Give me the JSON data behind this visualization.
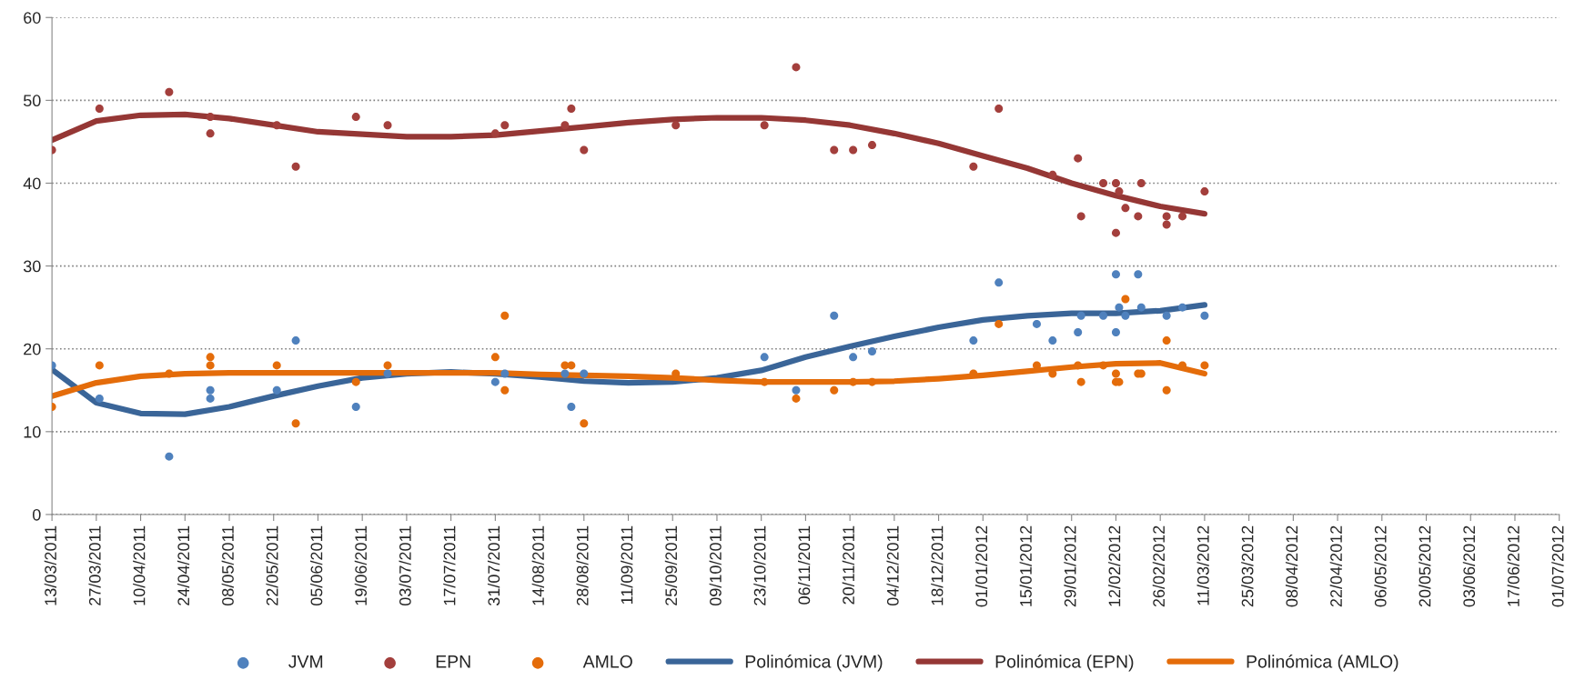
{
  "chart_data": {
    "type": "scatter",
    "xlim": [
      "2011-03-13",
      "2012-07-01"
    ],
    "xticks": [
      {
        "value": "2011-03-13",
        "label": "13/03/2011"
      },
      {
        "value": "2011-03-27",
        "label": "27/03/2011"
      },
      {
        "value": "2011-04-10",
        "label": "10/04/2011"
      },
      {
        "value": "2011-04-24",
        "label": "24/04/2011"
      },
      {
        "value": "2011-05-08",
        "label": "08/05/2011"
      },
      {
        "value": "2011-05-22",
        "label": "22/05/2011"
      },
      {
        "value": "2011-06-05",
        "label": "05/06/2011"
      },
      {
        "value": "2011-06-19",
        "label": "19/06/2011"
      },
      {
        "value": "2011-07-03",
        "label": "03/07/2011"
      },
      {
        "value": "2011-07-17",
        "label": "17/07/2011"
      },
      {
        "value": "2011-07-31",
        "label": "31/07/2011"
      },
      {
        "value": "2011-08-14",
        "label": "14/08/2011"
      },
      {
        "value": "2011-08-28",
        "label": "28/08/2011"
      },
      {
        "value": "2011-09-11",
        "label": "11/09/2011"
      },
      {
        "value": "2011-09-25",
        "label": "25/09/2011"
      },
      {
        "value": "2011-10-09",
        "label": "09/10/2011"
      },
      {
        "value": "2011-10-23",
        "label": "23/10/2011"
      },
      {
        "value": "2011-11-06",
        "label": "06/11/2011"
      },
      {
        "value": "2011-11-20",
        "label": "20/11/2011"
      },
      {
        "value": "2011-12-04",
        "label": "04/12/2011"
      },
      {
        "value": "2011-12-18",
        "label": "18/12/2011"
      },
      {
        "value": "2012-01-01",
        "label": "01/01/2012"
      },
      {
        "value": "2012-01-15",
        "label": "15/01/2012"
      },
      {
        "value": "2012-01-29",
        "label": "29/01/2012"
      },
      {
        "value": "2012-02-12",
        "label": "12/02/2012"
      },
      {
        "value": "2012-02-26",
        "label": "26/02/2012"
      },
      {
        "value": "2012-03-11",
        "label": "11/03/2012"
      },
      {
        "value": "2012-03-25",
        "label": "25/03/2012"
      },
      {
        "value": "2012-04-08",
        "label": "08/04/2012"
      },
      {
        "value": "2012-04-22",
        "label": "22/04/2012"
      },
      {
        "value": "2012-05-06",
        "label": "06/05/2012"
      },
      {
        "value": "2012-05-20",
        "label": "20/05/2012"
      },
      {
        "value": "2012-06-03",
        "label": "03/06/2012"
      },
      {
        "value": "2012-06-17",
        "label": "17/06/2012"
      },
      {
        "value": "2012-07-01",
        "label": "01/07/2012"
      }
    ],
    "ylim": [
      0,
      60
    ],
    "yticks": [
      0,
      10,
      20,
      30,
      40,
      50,
      60
    ],
    "grid": "y",
    "legend": "bottom",
    "series": [
      {
        "name": "JVM",
        "marker": "circle",
        "color": "#4f81bd",
        "x": [
          "2011-03-13",
          "2011-03-28",
          "2011-04-19",
          "2011-05-02",
          "2011-05-02",
          "2011-05-23",
          "2011-05-29",
          "2011-06-17",
          "2011-06-27",
          "2011-07-31",
          "2011-08-03",
          "2011-08-22",
          "2011-08-24",
          "2011-08-28",
          "2011-10-24",
          "2011-11-03",
          "2011-11-15",
          "2011-11-21",
          "2011-11-27",
          "2011-12-29",
          "2012-01-06",
          "2012-01-18",
          "2012-01-23",
          "2012-01-31",
          "2012-02-01",
          "2012-02-08",
          "2012-02-12",
          "2012-02-12",
          "2012-02-13",
          "2012-02-15",
          "2012-02-19",
          "2012-02-20",
          "2012-02-28",
          "2012-03-04",
          "2012-03-11"
        ],
        "values": [
          18,
          14,
          7,
          15,
          14,
          15,
          21,
          13,
          17,
          16,
          17,
          17,
          13,
          17,
          19,
          15,
          24,
          19,
          19.7,
          21,
          28,
          23,
          21,
          22,
          24,
          24,
          29,
          22,
          25,
          24,
          29,
          25,
          24,
          25,
          24
        ]
      },
      {
        "name": "EPN",
        "marker": "circle",
        "color": "#a33f3c",
        "x": [
          "2011-03-13",
          "2011-03-28",
          "2011-04-19",
          "2011-05-02",
          "2011-05-02",
          "2011-05-23",
          "2011-05-29",
          "2011-06-17",
          "2011-06-27",
          "2011-07-31",
          "2011-08-03",
          "2011-08-22",
          "2011-08-24",
          "2011-08-28",
          "2011-09-26",
          "2011-10-24",
          "2011-11-03",
          "2011-11-15",
          "2011-11-21",
          "2011-11-27",
          "2011-12-29",
          "2012-01-06",
          "2012-01-23",
          "2012-01-31",
          "2012-02-01",
          "2012-02-08",
          "2012-02-12",
          "2012-02-12",
          "2012-02-13",
          "2012-02-15",
          "2012-02-19",
          "2012-02-20",
          "2012-02-28",
          "2012-02-28",
          "2012-03-04",
          "2012-03-11"
        ],
        "values": [
          44,
          49,
          51,
          46,
          48,
          47,
          42,
          48,
          47,
          46,
          47,
          47,
          49,
          44,
          47,
          47,
          54,
          44,
          44,
          44.6,
          42,
          49,
          41,
          43,
          36,
          40,
          40,
          34,
          39,
          37,
          36,
          40,
          36,
          35,
          36,
          39
        ]
      },
      {
        "name": "AMLO",
        "marker": "circle",
        "color": "#e46c0a",
        "x": [
          "2011-03-13",
          "2011-03-28",
          "2011-04-19",
          "2011-05-02",
          "2011-05-02",
          "2011-05-23",
          "2011-05-29",
          "2011-06-17",
          "2011-06-27",
          "2011-07-31",
          "2011-08-03",
          "2011-08-03",
          "2011-08-22",
          "2011-08-24",
          "2011-08-28",
          "2011-09-26",
          "2011-10-24",
          "2011-11-03",
          "2011-11-15",
          "2011-11-21",
          "2011-11-27",
          "2011-12-29",
          "2012-01-06",
          "2012-01-18",
          "2012-01-23",
          "2012-01-31",
          "2012-02-01",
          "2012-02-08",
          "2012-02-12",
          "2012-02-12",
          "2012-02-13",
          "2012-02-15",
          "2012-02-19",
          "2012-02-20",
          "2012-02-28",
          "2012-02-28",
          "2012-03-04",
          "2012-03-11"
        ],
        "values": [
          13,
          18,
          17,
          19,
          18,
          18,
          11,
          16,
          18,
          19,
          24,
          15,
          18,
          18,
          11,
          17,
          16,
          14,
          15,
          16,
          16,
          17,
          23,
          18,
          17,
          18,
          16,
          18,
          17,
          16,
          16,
          26,
          17,
          17,
          21,
          15,
          18,
          18
        ]
      },
      {
        "name": "Polinómica (JVM)",
        "type": "line",
        "color": "#3a6598",
        "x": [
          "2011-03-13",
          "2011-03-27",
          "2011-04-10",
          "2011-04-24",
          "2011-05-08",
          "2011-05-22",
          "2011-06-05",
          "2011-06-19",
          "2011-07-03",
          "2011-07-17",
          "2011-07-31",
          "2011-08-14",
          "2011-08-28",
          "2011-09-11",
          "2011-09-25",
          "2011-10-09",
          "2011-10-23",
          "2011-11-06",
          "2011-11-20",
          "2011-12-04",
          "2011-12-18",
          "2012-01-01",
          "2012-01-15",
          "2012-01-29",
          "2012-02-12",
          "2012-02-26",
          "2012-03-11"
        ],
        "values": [
          17.5,
          13.5,
          12.2,
          12.1,
          13.0,
          14.3,
          15.5,
          16.5,
          17.0,
          17.2,
          17.0,
          16.6,
          16.1,
          15.9,
          16.0,
          16.5,
          17.4,
          19.0,
          20.3,
          21.5,
          22.6,
          23.5,
          24.0,
          24.3,
          24.3,
          24.6,
          25.3
        ]
      },
      {
        "name": "Polinómica (EPN)",
        "type": "line",
        "color": "#953735",
        "x": [
          "2011-03-13",
          "2011-03-27",
          "2011-04-10",
          "2011-04-24",
          "2011-05-08",
          "2011-05-22",
          "2011-06-05",
          "2011-06-19",
          "2011-07-03",
          "2011-07-17",
          "2011-07-31",
          "2011-08-14",
          "2011-08-28",
          "2011-09-11",
          "2011-09-25",
          "2011-10-09",
          "2011-10-23",
          "2011-11-06",
          "2011-11-20",
          "2011-12-04",
          "2011-12-18",
          "2012-01-01",
          "2012-01-15",
          "2012-01-29",
          "2012-02-12",
          "2012-02-26",
          "2012-03-11"
        ],
        "values": [
          45.2,
          47.5,
          48.2,
          48.3,
          47.8,
          47.0,
          46.2,
          45.9,
          45.6,
          45.6,
          45.8,
          46.3,
          46.8,
          47.3,
          47.7,
          47.9,
          47.9,
          47.6,
          47.0,
          46.0,
          44.8,
          43.3,
          41.8,
          40.0,
          38.5,
          37.2,
          36.3
        ]
      },
      {
        "name": "Polinómica (AMLO)",
        "type": "line",
        "color": "#e46c0a",
        "x": [
          "2011-03-13",
          "2011-03-27",
          "2011-04-10",
          "2011-04-24",
          "2011-05-08",
          "2011-05-22",
          "2011-06-05",
          "2011-06-19",
          "2011-07-03",
          "2011-07-17",
          "2011-07-31",
          "2011-08-14",
          "2011-08-28",
          "2011-09-11",
          "2011-09-25",
          "2011-10-09",
          "2011-10-23",
          "2011-11-06",
          "2011-11-20",
          "2011-12-04",
          "2011-12-18",
          "2012-01-01",
          "2012-01-15",
          "2012-01-29",
          "2012-02-12",
          "2012-02-26",
          "2012-03-11"
        ],
        "values": [
          14.3,
          15.9,
          16.7,
          17.0,
          17.1,
          17.1,
          17.1,
          17.1,
          17.1,
          17.1,
          17.1,
          16.9,
          16.8,
          16.7,
          16.5,
          16.2,
          16.0,
          16.0,
          16.0,
          16.1,
          16.4,
          16.8,
          17.3,
          17.8,
          18.2,
          18.3,
          17.0
        ]
      }
    ]
  }
}
